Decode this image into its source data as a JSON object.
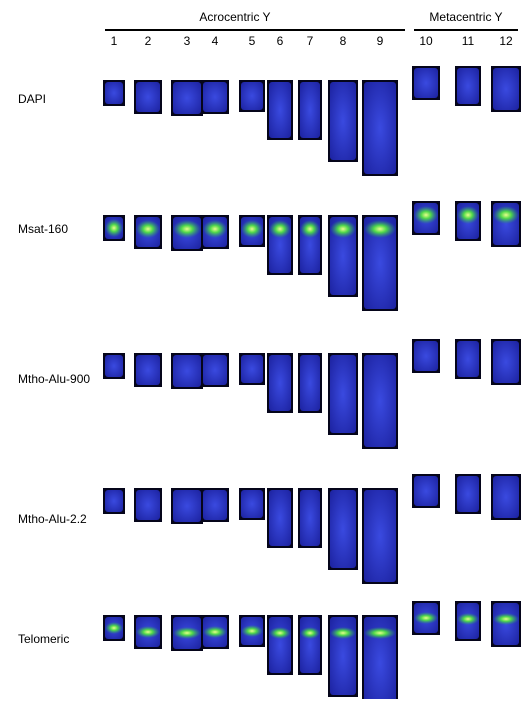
{
  "groups": [
    {
      "label": "Acrocentric Y"
    },
    {
      "label": "Metacentric Y"
    }
  ],
  "columns": [
    "1",
    "2",
    "3",
    "4",
    "5",
    "6",
    "7",
    "8",
    "9",
    "10",
    "11",
    "12"
  ],
  "rows": [
    "DAPI",
    "Msat-160",
    "Mtho-Alu-900",
    "Mtho-Alu-2.2",
    "Telomeric"
  ]
}
